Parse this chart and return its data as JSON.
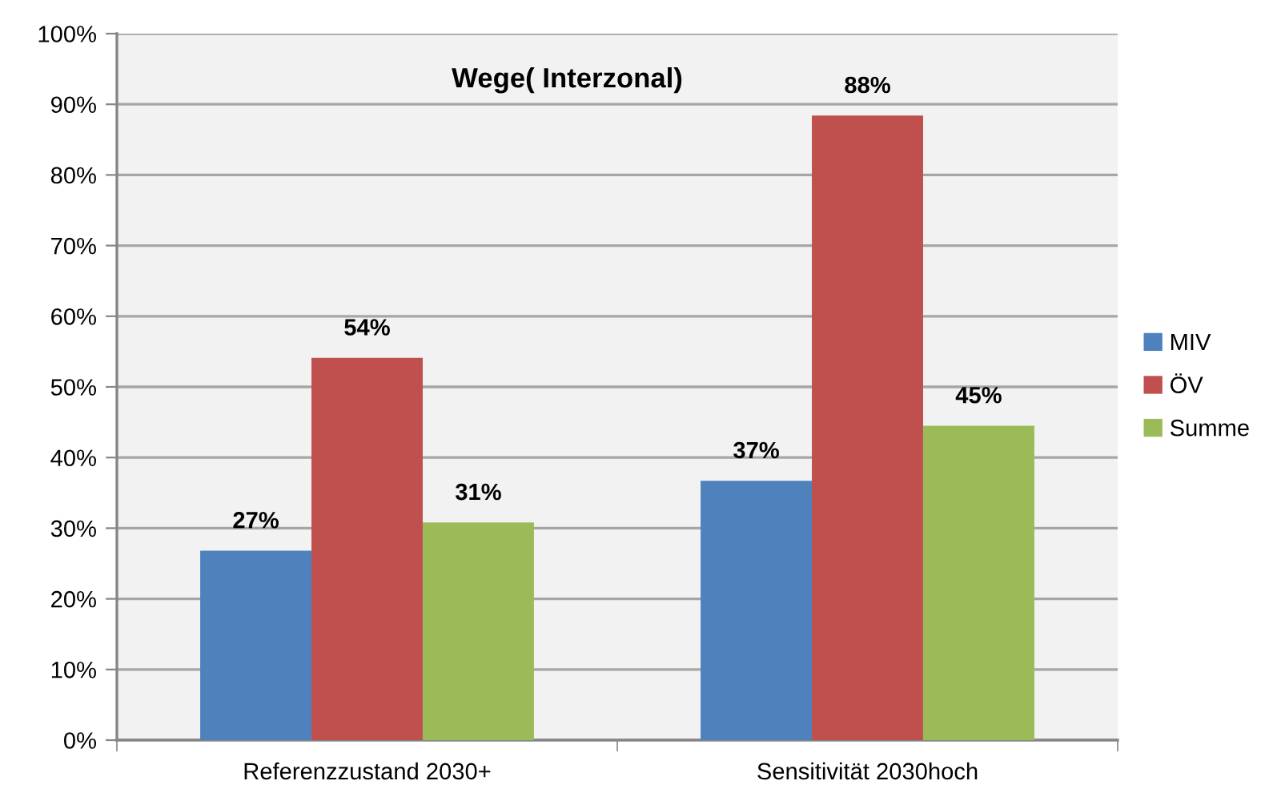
{
  "chart_data": {
    "type": "bar",
    "title": "Wege( Interzonal)",
    "categories": [
      "Referenzzustand 2030+",
      "Sensitivität 2030hoch"
    ],
    "series": [
      {
        "name": "MIV",
        "color": "#4f81bd",
        "values": [
          26.8,
          36.7
        ],
        "value_labels": [
          "27%",
          "37%"
        ]
      },
      {
        "name": "ÖV",
        "color": "#c0504d",
        "values": [
          54.1,
          88.4
        ],
        "value_labels": [
          "54%",
          "88%"
        ]
      },
      {
        "name": "Summe",
        "color": "#9bbb59",
        "values": [
          30.8,
          44.5
        ],
        "value_labels": [
          "31%",
          "45%"
        ]
      }
    ],
    "ylim": [
      0,
      100
    ],
    "yticks": [
      {
        "value": 0,
        "label": "0%"
      },
      {
        "value": 10,
        "label": "10%"
      },
      {
        "value": 20,
        "label": "20%"
      },
      {
        "value": 30,
        "label": "30%"
      },
      {
        "value": 40,
        "label": "40%"
      },
      {
        "value": 50,
        "label": "50%"
      },
      {
        "value": 60,
        "label": "60%"
      },
      {
        "value": 70,
        "label": "70%"
      },
      {
        "value": 80,
        "label": "80%"
      },
      {
        "value": 90,
        "label": "90%"
      },
      {
        "value": 100,
        "label": "100%"
      }
    ],
    "grid": "y",
    "legend": "right"
  }
}
